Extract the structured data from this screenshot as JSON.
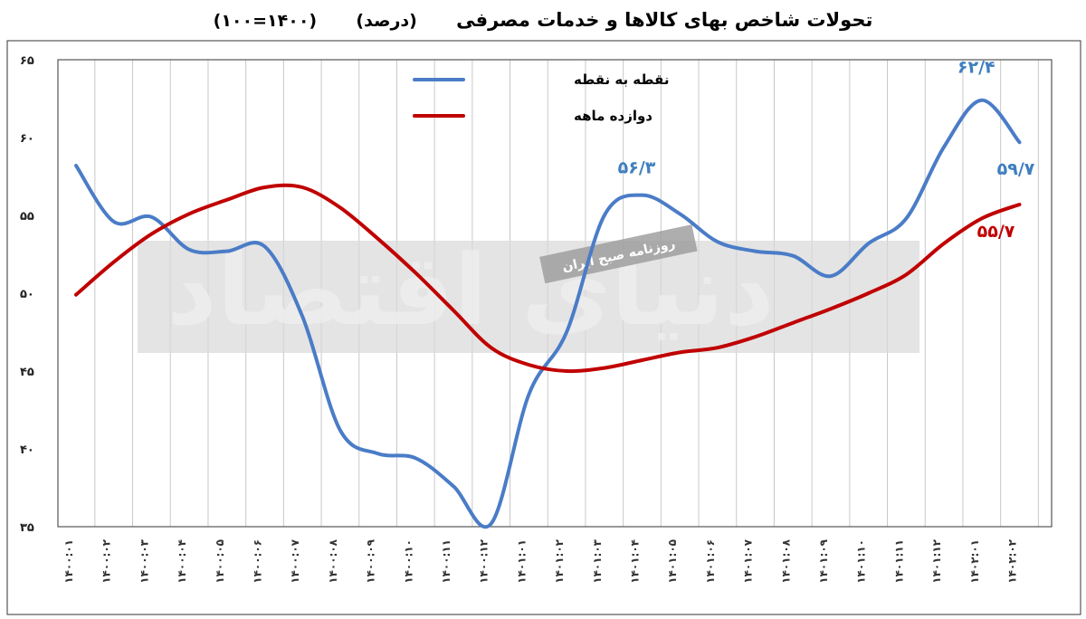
{
  "chart_data": {
    "type": "line",
    "title": "تحولات شاخص بهای کالاها و خدمات مصرفی",
    "subtitle": "(درصد)",
    "base_note": "(۱۴۰۰=۱۰۰)",
    "ylim": [
      35,
      65
    ],
    "y_ticks": [
      "۳۵",
      "۴۰",
      "۴۵",
      "۵۰",
      "۵۵",
      "۶۰",
      "۶۵"
    ],
    "y_tick_values": [
      35,
      40,
      45,
      50,
      55,
      60,
      65
    ],
    "grid": "vertical",
    "legend_position": "top-center",
    "categories": [
      "۱۴۰۰:۰۱",
      "۱۴۰۰:۰۲",
      "۱۴۰۰:۰۳",
      "۱۴۰۰:۰۴",
      "۱۴۰۰:۰۵",
      "۱۴۰۰:۰۶",
      "۱۴۰۰:۰۷",
      "۱۴۰۰:۰۸",
      "۱۴۰۰:۰۹",
      "۱۴۰۰:۱۰",
      "۱۴۰۰:۱۱",
      "۱۴۰۰:۱۲",
      "۱۴۰۱:۰۱",
      "۱۴۰۱:۰۲",
      "۱۴۰۱:۰۳",
      "۱۴۰۱:۰۴",
      "۱۴۰۱:۰۵",
      "۱۴۰۱:۰۶",
      "۱۴۰۱:۰۷",
      "۱۴۰۱:۰۸",
      "۱۴۰۱:۰۹",
      "۱۴۰۱:۱۰",
      "۱۴۰۱:۱۱",
      "۱۴۰۱:۱۲",
      "۱۴۰۲:۰۱",
      "۱۴۰۲:۰۲"
    ],
    "series": [
      {
        "name": "نقطه به نقطه",
        "color": "#4a7cc7",
        "values": [
          58.2,
          54.6,
          54.9,
          52.8,
          52.7,
          53.0,
          48.5,
          41.2,
          39.7,
          39.4,
          37.6,
          35.2,
          43.5,
          47.5,
          55.0,
          56.3,
          55.1,
          53.3,
          52.7,
          52.4,
          51.1,
          53.2,
          54.8,
          59.4,
          62.4,
          59.7
        ]
      },
      {
        "name": "دوازده ماهه",
        "color": "#c00000",
        "values": [
          49.9,
          52.0,
          53.8,
          55.1,
          56.0,
          56.8,
          56.8,
          55.5,
          53.5,
          51.3,
          48.9,
          46.5,
          45.4,
          45.0,
          45.2,
          45.7,
          46.2,
          46.5,
          47.2,
          48.1,
          49.0,
          50.0,
          51.2,
          53.2,
          54.8,
          55.7
        ]
      }
    ],
    "annotations": [
      {
        "text": "۶۲/۴",
        "series": 0,
        "index": 24,
        "color": "#3f7fbf"
      },
      {
        "text": "۵۹/۷",
        "series": 0,
        "index": 25,
        "color": "#3f7fbf"
      },
      {
        "text": "۵۶/۳",
        "series": 0,
        "index": 15,
        "color": "#3f7fbf"
      },
      {
        "text": "۵۵/۷",
        "series": 1,
        "index": 25,
        "color": "#c00000"
      }
    ]
  },
  "watermark": {
    "logo_text": "دنیای اقتصاد",
    "tagline": "روزنامه صبح ایران"
  }
}
